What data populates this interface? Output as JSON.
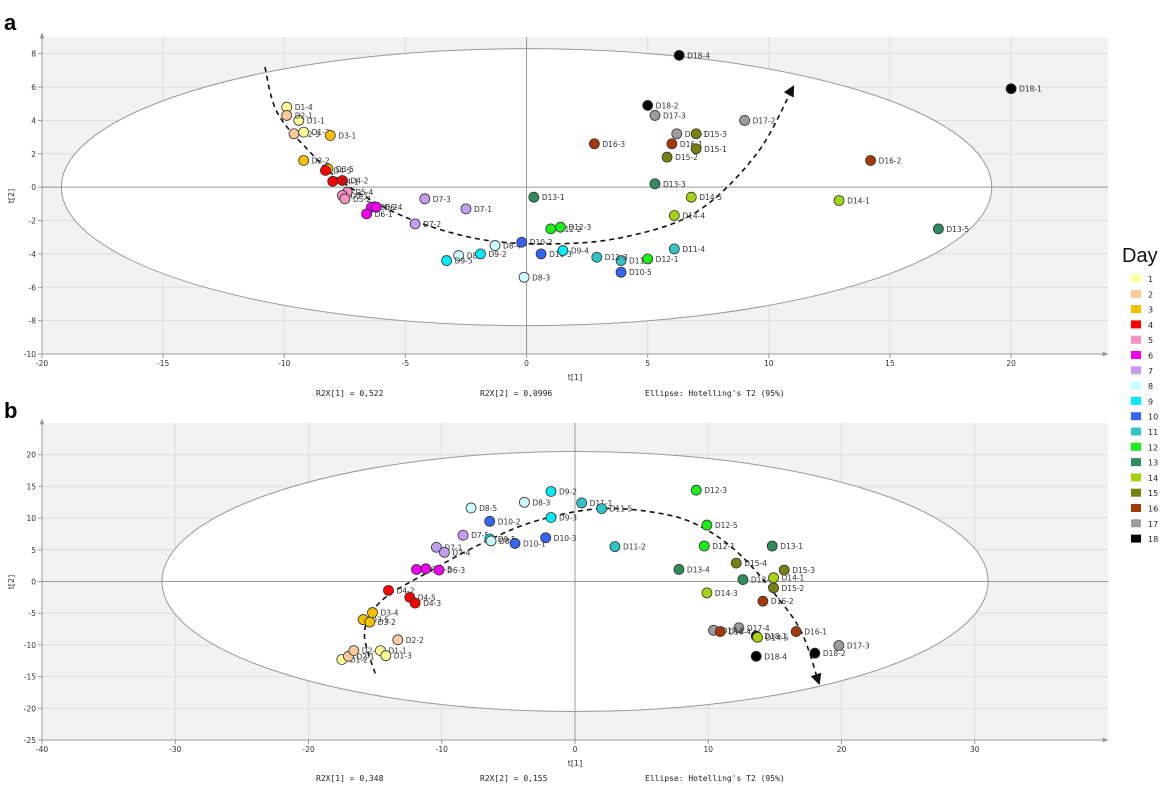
{
  "panels": [
    {
      "letter": "a",
      "x_axis_label": "t[1]",
      "y_axis_label": "t[2]",
      "r2x1": "R2X[1] = 0,522",
      "r2x2": "R2X[2] = 0,0996",
      "ellipse": "Ellipse: Hotelling's T2 (95%)"
    },
    {
      "letter": "b",
      "x_axis_label": "t[1]",
      "y_axis_label": "t[2]",
      "r2x1": "R2X[1] = 0,348",
      "r2x2": "R2X[2] = 0,155",
      "ellipse": "Ellipse: Hotelling's T2 (95%)"
    }
  ],
  "legend": {
    "title": "Day",
    "items": [
      {
        "label": "1",
        "color": "#ffff99"
      },
      {
        "label": "2",
        "color": "#fbc99a"
      },
      {
        "label": "3",
        "color": "#f5c000"
      },
      {
        "label": "4",
        "color": "#ff0000"
      },
      {
        "label": "5",
        "color": "#f990c0"
      },
      {
        "label": "6",
        "color": "#f000f0"
      },
      {
        "label": "7",
        "color": "#c49cf0"
      },
      {
        "label": "8",
        "color": "#ccfcff"
      },
      {
        "label": "9",
        "color": "#00ecf6"
      },
      {
        "label": "10",
        "color": "#3464f0"
      },
      {
        "label": "11",
        "color": "#30c4c4"
      },
      {
        "label": "12",
        "color": "#18f018"
      },
      {
        "label": "13",
        "color": "#2e8c5c"
      },
      {
        "label": "14",
        "color": "#a4d410"
      },
      {
        "label": "15",
        "color": "#788010"
      },
      {
        "label": "16",
        "color": "#a43808"
      },
      {
        "label": "17",
        "color": "#9c9c9c"
      },
      {
        "label": "18",
        "color": "#000000"
      }
    ]
  },
  "chart_data": [
    {
      "type": "scatter",
      "panel": "a",
      "xlabel": "t[1]",
      "ylabel": "t[2]",
      "xlim": [
        -20,
        24
      ],
      "ylim": [
        -10,
        9
      ],
      "xticks": [
        -20,
        -15,
        -10,
        -5,
        0,
        5,
        10,
        15,
        20
      ],
      "yticks": [
        -10,
        -8,
        -6,
        -4,
        -2,
        0,
        2,
        4,
        6,
        8
      ],
      "ellipse": {
        "cx": 0,
        "cy": 0,
        "rx": 19.2,
        "ry": 8.3
      },
      "trajectory": [
        [
          -10.8,
          7.2
        ],
        [
          -10.3,
          4.5
        ],
        [
          -9,
          2.2
        ],
        [
          -7.5,
          0.2
        ],
        [
          -5,
          -1.8
        ],
        [
          -2,
          -3.1
        ],
        [
          1,
          -3.4
        ],
        [
          4,
          -3
        ],
        [
          7,
          -1.5
        ],
        [
          9.5,
          2
        ],
        [
          11,
          6.0
        ]
      ],
      "points": [
        {
          "label": "D1-4",
          "x": -9.9,
          "y": 4.8,
          "day": 1
        },
        {
          "label": "D1-1",
          "x": -9.4,
          "y": 4.0,
          "day": 1
        },
        {
          "label": "D2-1",
          "x": -9.9,
          "y": 4.3,
          "day": 2
        },
        {
          "label": "D2-3",
          "x": -9.6,
          "y": 3.2,
          "day": 2
        },
        {
          "label": "D1-2",
          "x": -9.2,
          "y": 3.3,
          "day": 1
        },
        {
          "label": "D3-1",
          "x": -8.1,
          "y": 3.1,
          "day": 3
        },
        {
          "label": "D3-2",
          "x": -9.2,
          "y": 1.6,
          "day": 3
        },
        {
          "label": "D3-5",
          "x": -8.2,
          "y": 1.1,
          "day": 3
        },
        {
          "label": "D4-5",
          "x": -8.3,
          "y": 1.0,
          "day": 4
        },
        {
          "label": "D4-2",
          "x": -7.6,
          "y": 0.4,
          "day": 4
        },
        {
          "label": "D4-1",
          "x": -8.0,
          "y": 0.35,
          "day": 4
        },
        {
          "label": "D5-4",
          "x": -7.4,
          "y": -0.3,
          "day": 5
        },
        {
          "label": "D5-1",
          "x": -7.6,
          "y": -0.5,
          "day": 5
        },
        {
          "label": "D5-2",
          "x": -7.5,
          "y": -0.7,
          "day": 5
        },
        {
          "label": "D6-2",
          "x": -6.4,
          "y": -1.2,
          "day": 6
        },
        {
          "label": "D6-4",
          "x": -6.2,
          "y": -1.2,
          "day": 6
        },
        {
          "label": "D6-1",
          "x": -6.6,
          "y": -1.6,
          "day": 6
        },
        {
          "label": "D7-3",
          "x": -4.2,
          "y": -0.7,
          "day": 7
        },
        {
          "label": "D7-1",
          "x": -2.5,
          "y": -1.3,
          "day": 7
        },
        {
          "label": "D7-2",
          "x": -4.6,
          "y": -2.2,
          "day": 7
        },
        {
          "label": "D8-4",
          "x": -1.3,
          "y": -3.5,
          "day": 8
        },
        {
          "label": "D8-1",
          "x": -2.8,
          "y": -4.1,
          "day": 8
        },
        {
          "label": "D9-5",
          "x": -3.3,
          "y": -4.4,
          "day": 9
        },
        {
          "label": "D9-2",
          "x": -1.9,
          "y": -4.0,
          "day": 9
        },
        {
          "label": "D8-3",
          "x": -0.1,
          "y": -5.4,
          "day": 8
        },
        {
          "label": "D10-2",
          "x": -0.2,
          "y": -3.3,
          "day": 10
        },
        {
          "label": "D10-3",
          "x": 0.6,
          "y": -4.0,
          "day": 10
        },
        {
          "label": "D9-4",
          "x": 1.5,
          "y": -3.8,
          "day": 9
        },
        {
          "label": "D12-2",
          "x": 1.0,
          "y": -2.5,
          "day": 12
        },
        {
          "label": "D12-3",
          "x": 1.4,
          "y": -2.4,
          "day": 12
        },
        {
          "label": "D13-1",
          "x": 0.3,
          "y": -0.6,
          "day": 13
        },
        {
          "label": "D11-2",
          "x": 3.9,
          "y": -4.4,
          "day": 11
        },
        {
          "label": "D11-3",
          "x": 2.9,
          "y": -4.2,
          "day": 11
        },
        {
          "label": "D10-5",
          "x": 3.9,
          "y": -5.1,
          "day": 10
        },
        {
          "label": "D12-1",
          "x": 5.0,
          "y": -4.3,
          "day": 12
        },
        {
          "label": "D11-4",
          "x": 6.1,
          "y": -3.7,
          "day": 11
        },
        {
          "label": "D13-3",
          "x": 5.3,
          "y": 0.2,
          "day": 13
        },
        {
          "label": "D14-5",
          "x": 6.8,
          "y": -0.6,
          "day": 14
        },
        {
          "label": "D14-4",
          "x": 6.1,
          "y": -1.7,
          "day": 14
        },
        {
          "label": "D16-3",
          "x": 2.8,
          "y": 2.6,
          "day": 16
        },
        {
          "label": "D15-2",
          "x": 5.8,
          "y": 1.8,
          "day": 15
        },
        {
          "label": "D16-1",
          "x": 6.0,
          "y": 2.6,
          "day": 16
        },
        {
          "label": "D17-1",
          "x": 6.2,
          "y": 3.2,
          "day": 17
        },
        {
          "label": "D15-3",
          "x": 7.0,
          "y": 3.2,
          "day": 15
        },
        {
          "label": "D15-1",
          "x": 7.0,
          "y": 2.3,
          "day": 15
        },
        {
          "label": "D18-2",
          "x": 5.0,
          "y": 4.9,
          "day": 18
        },
        {
          "label": "D17-3",
          "x": 5.3,
          "y": 4.3,
          "day": 17
        },
        {
          "label": "D17-2",
          "x": 9.0,
          "y": 4.0,
          "day": 17
        },
        {
          "label": "D18-4",
          "x": 6.3,
          "y": 7.9,
          "day": 18
        },
        {
          "label": "D16-2",
          "x": 14.2,
          "y": 1.6,
          "day": 16
        },
        {
          "label": "D14-1",
          "x": 12.9,
          "y": -0.8,
          "day": 14
        },
        {
          "label": "D13-5",
          "x": 17.0,
          "y": -2.5,
          "day": 13
        },
        {
          "label": "D18-1",
          "x": 20.0,
          "y": 5.9,
          "day": 18
        }
      ]
    },
    {
      "type": "scatter",
      "panel": "b",
      "xlabel": "t[1]",
      "ylabel": "t[2]",
      "xlim": [
        -40,
        40
      ],
      "ylim": [
        -25,
        25
      ],
      "xticks": [
        -40,
        -30,
        -20,
        -10,
        0,
        10,
        20,
        30
      ],
      "yticks": [
        -25,
        -20,
        -15,
        -10,
        -5,
        0,
        5,
        10,
        15,
        20
      ],
      "ellipse": {
        "cx": 0,
        "cy": 0,
        "rx": 31,
        "ry": 20.5
      },
      "trajectory": [
        [
          -15,
          -14.5
        ],
        [
          -15.8,
          -8
        ],
        [
          -14.5,
          -3
        ],
        [
          -11,
          1.5
        ],
        [
          -7,
          6
        ],
        [
          -3,
          9.5
        ],
        [
          2,
          11.5
        ],
        [
          7,
          10.5
        ],
        [
          10,
          8
        ],
        [
          12.5,
          4
        ],
        [
          15,
          -2
        ],
        [
          17,
          -8
        ],
        [
          18.3,
          -16
        ]
      ],
      "points": [
        {
          "label": "D1-2",
          "x": -17.5,
          "y": -12.3,
          "day": 1
        },
        {
          "label": "D2-1",
          "x": -17.0,
          "y": -11.8,
          "day": 2
        },
        {
          "label": "D2-3",
          "x": -16.6,
          "y": -10.9,
          "day": 2
        },
        {
          "label": "D1-1",
          "x": -14.6,
          "y": -10.9,
          "day": 1
        },
        {
          "label": "D1-3",
          "x": -14.2,
          "y": -11.7,
          "day": 1
        },
        {
          "label": "D2-2",
          "x": -13.3,
          "y": -9.2,
          "day": 2
        },
        {
          "label": "D3-5",
          "x": -15.9,
          "y": -6.0,
          "day": 3
        },
        {
          "label": "D3-2",
          "x": -15.4,
          "y": -6.4,
          "day": 3
        },
        {
          "label": "D3-4",
          "x": -15.2,
          "y": -4.9,
          "day": 3
        },
        {
          "label": "D4-2",
          "x": -14.0,
          "y": -1.4,
          "day": 4
        },
        {
          "label": "D4-5",
          "x": -12.4,
          "y": -2.5,
          "day": 4
        },
        {
          "label": "D4-3",
          "x": -12.0,
          "y": -3.4,
          "day": 4
        },
        {
          "label": "D6-4",
          "x": -11.9,
          "y": 1.9,
          "day": 6
        },
        {
          "label": "D6-5",
          "x": -11.2,
          "y": 2.0,
          "day": 6
        },
        {
          "label": "D6-3",
          "x": -10.2,
          "y": 1.8,
          "day": 6
        },
        {
          "label": "D7-1",
          "x": -10.4,
          "y": 5.4,
          "day": 7
        },
        {
          "label": "D7-4",
          "x": -9.8,
          "y": 4.6,
          "day": 7
        },
        {
          "label": "D7-5",
          "x": -8.4,
          "y": 7.3,
          "day": 7
        },
        {
          "label": "D8-5",
          "x": -7.8,
          "y": 11.6,
          "day": 8
        },
        {
          "label": "D10-2",
          "x": -6.4,
          "y": 9.5,
          "day": 10
        },
        {
          "label": "D9-5",
          "x": -6.4,
          "y": 6.7,
          "day": 9
        },
        {
          "label": "D8-1",
          "x": -6.3,
          "y": 6.4,
          "day": 8
        },
        {
          "label": "D10-1",
          "x": -4.5,
          "y": 6.0,
          "day": 10
        },
        {
          "label": "D8-3",
          "x": -3.8,
          "y": 12.5,
          "day": 8
        },
        {
          "label": "D9-2",
          "x": -1.8,
          "y": 14.2,
          "day": 9
        },
        {
          "label": "D9-3",
          "x": -1.8,
          "y": 10.1,
          "day": 9
        },
        {
          "label": "D10-3",
          "x": -2.2,
          "y": 6.9,
          "day": 10
        },
        {
          "label": "D11-1",
          "x": 0.5,
          "y": 12.4,
          "day": 11
        },
        {
          "label": "D11-5",
          "x": 2.0,
          "y": 11.5,
          "day": 11
        },
        {
          "label": "D11-2",
          "x": 3.0,
          "y": 5.5,
          "day": 11
        },
        {
          "label": "D12-3",
          "x": 9.1,
          "y": 14.4,
          "day": 12
        },
        {
          "label": "D12-5",
          "x": 9.9,
          "y": 8.9,
          "day": 12
        },
        {
          "label": "D12-1",
          "x": 9.7,
          "y": 5.6,
          "day": 12
        },
        {
          "label": "D13-1",
          "x": 14.8,
          "y": 5.6,
          "day": 13
        },
        {
          "label": "D13-4",
          "x": 7.8,
          "y": 1.9,
          "day": 13
        },
        {
          "label": "D15-4",
          "x": 12.1,
          "y": 2.9,
          "day": 15
        },
        {
          "label": "D13-2",
          "x": 12.6,
          "y": 0.3,
          "day": 13
        },
        {
          "label": "D14-1",
          "x": 14.9,
          "y": 0.6,
          "day": 14
        },
        {
          "label": "D15-3",
          "x": 15.7,
          "y": 1.8,
          "day": 15
        },
        {
          "label": "D15-2",
          "x": 14.9,
          "y": -1.0,
          "day": 15
        },
        {
          "label": "D14-3",
          "x": 9.9,
          "y": -1.8,
          "day": 14
        },
        {
          "label": "D16-2",
          "x": 14.1,
          "y": -3.1,
          "day": 16
        },
        {
          "label": "D17-4",
          "x": 12.3,
          "y": -7.3,
          "day": 17
        },
        {
          "label": "D17-1",
          "x": 10.4,
          "y": -7.7,
          "day": 17
        },
        {
          "label": "D16-4",
          "x": 10.9,
          "y": -7.9,
          "day": 16
        },
        {
          "label": "D18-1",
          "x": 13.6,
          "y": -8.6,
          "day": 18
        },
        {
          "label": "D14-5",
          "x": 13.7,
          "y": -8.8,
          "day": 14
        },
        {
          "label": "D16-1",
          "x": 16.6,
          "y": -7.9,
          "day": 16
        },
        {
          "label": "D17-3",
          "x": 19.8,
          "y": -10.1,
          "day": 17
        },
        {
          "label": "D18-4",
          "x": 13.6,
          "y": -11.8,
          "day": 18
        },
        {
          "label": "D18-2",
          "x": 18.0,
          "y": -11.3,
          "day": 18
        }
      ]
    }
  ]
}
